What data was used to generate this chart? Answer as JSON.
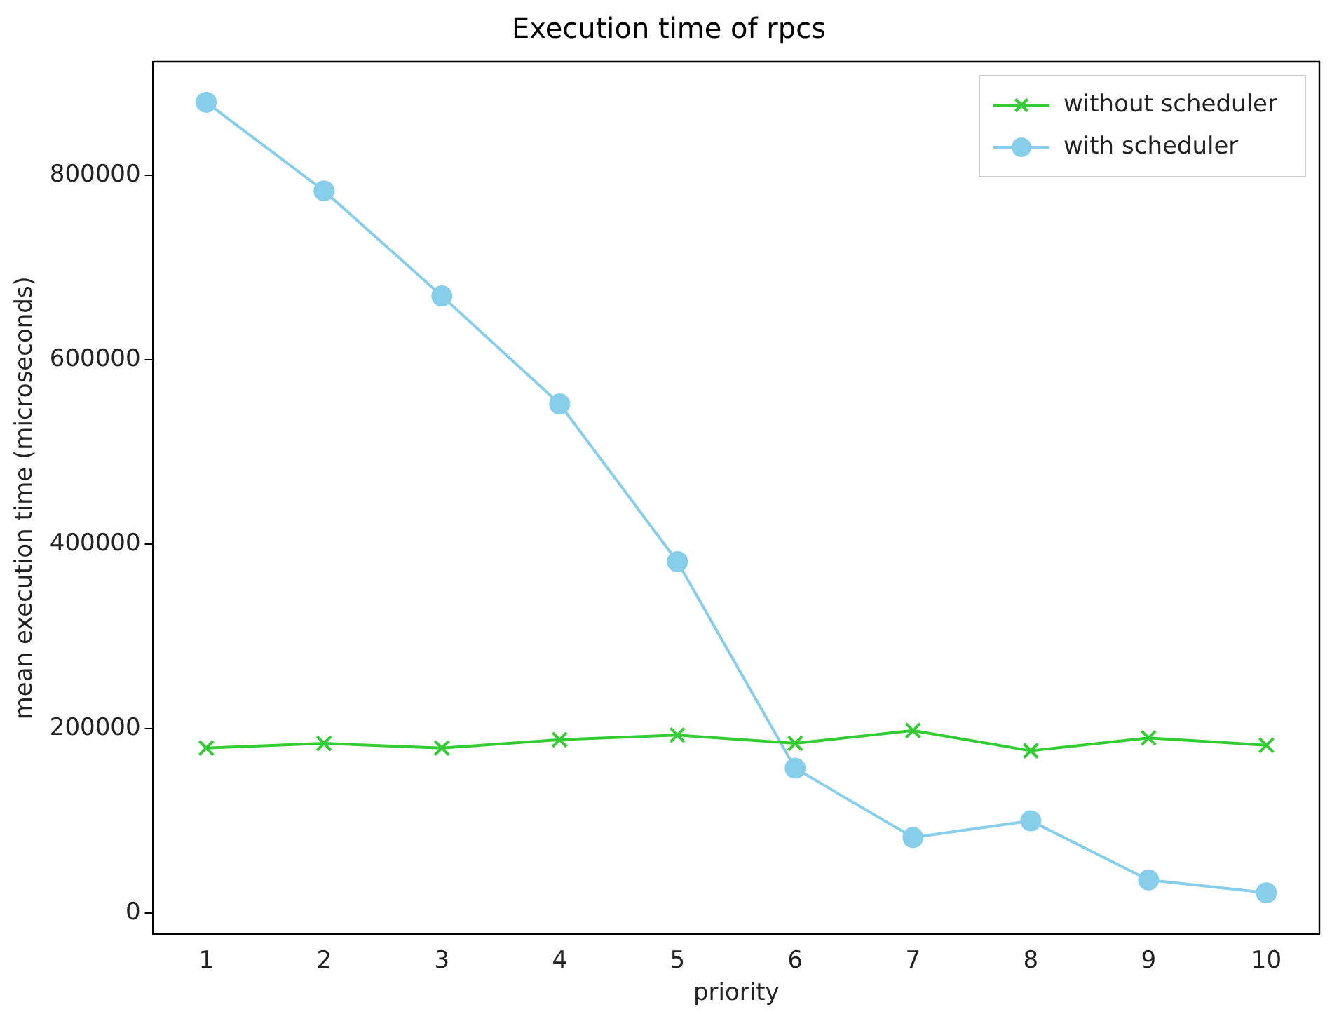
{
  "chart_data": {
    "type": "line",
    "title": "Execution time of rpcs",
    "xlabel": "priority",
    "ylabel": "mean execution time (microseconds)",
    "x": [
      1,
      2,
      3,
      4,
      5,
      6,
      7,
      8,
      9,
      10
    ],
    "xlim": [
      0.55,
      10.45
    ],
    "xticks": [
      1,
      2,
      3,
      4,
      5,
      6,
      7,
      8,
      9,
      10
    ],
    "ylim": [
      -23000,
      923000
    ],
    "yticks": [
      0,
      200000,
      400000,
      600000,
      800000
    ],
    "series": [
      {
        "name": "without scheduler",
        "color": "#32cd32",
        "marker": "cross",
        "values": [
          179000,
          184000,
          179000,
          188000,
          193000,
          184000,
          198000,
          176000,
          190000,
          182000
        ]
      },
      {
        "name": "with scheduler",
        "color": "#87ceeb",
        "marker": "circle",
        "values": [
          879000,
          783000,
          669000,
          552000,
          381000,
          157000,
          82000,
          100000,
          36000,
          22000
        ]
      }
    ],
    "grid": false,
    "legend": "top right",
    "line_style": "solid"
  }
}
